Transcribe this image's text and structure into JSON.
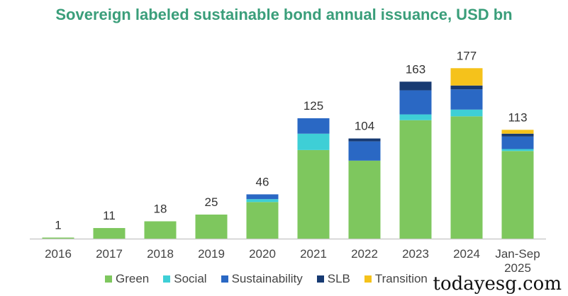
{
  "chart_data": {
    "type": "bar",
    "stacked": true,
    "title": "Sovereign labeled sustainable bond annual issuance, USD bn",
    "xlabel": "",
    "ylabel": "",
    "ylim": [
      0,
      180
    ],
    "grid": false,
    "legend_position": "bottom",
    "categories": [
      "2016",
      "2017",
      "2018",
      "2019",
      "2020",
      "2021",
      "2022",
      "2023",
      "2024",
      "Jan-Sep 2025"
    ],
    "totals": [
      "1",
      "11",
      "18",
      "25",
      "46",
      "125",
      "104",
      "163",
      "177",
      "113"
    ],
    "series": [
      {
        "name": "Green",
        "color": "#7ec75e",
        "values": [
          1,
          11,
          18,
          25,
          38,
          92,
          81,
          123,
          127,
          91
        ]
      },
      {
        "name": "Social",
        "color": "#3ecfd6",
        "values": [
          0,
          0,
          0,
          0,
          3,
          17,
          0,
          6,
          7,
          2
        ]
      },
      {
        "name": "Sustainability",
        "color": "#2a68c4",
        "values": [
          0,
          0,
          0,
          0,
          5,
          16,
          20,
          25,
          21,
          13
        ]
      },
      {
        "name": "SLB",
        "color": "#173a72",
        "values": [
          0,
          0,
          0,
          0,
          0,
          0,
          3,
          9,
          4,
          3
        ]
      },
      {
        "name": "Transition",
        "color": "#f5c21b",
        "values": [
          0,
          0,
          0,
          0,
          0,
          0,
          0,
          0,
          18,
          4
        ]
      }
    ]
  },
  "watermark": "todayesg.com"
}
